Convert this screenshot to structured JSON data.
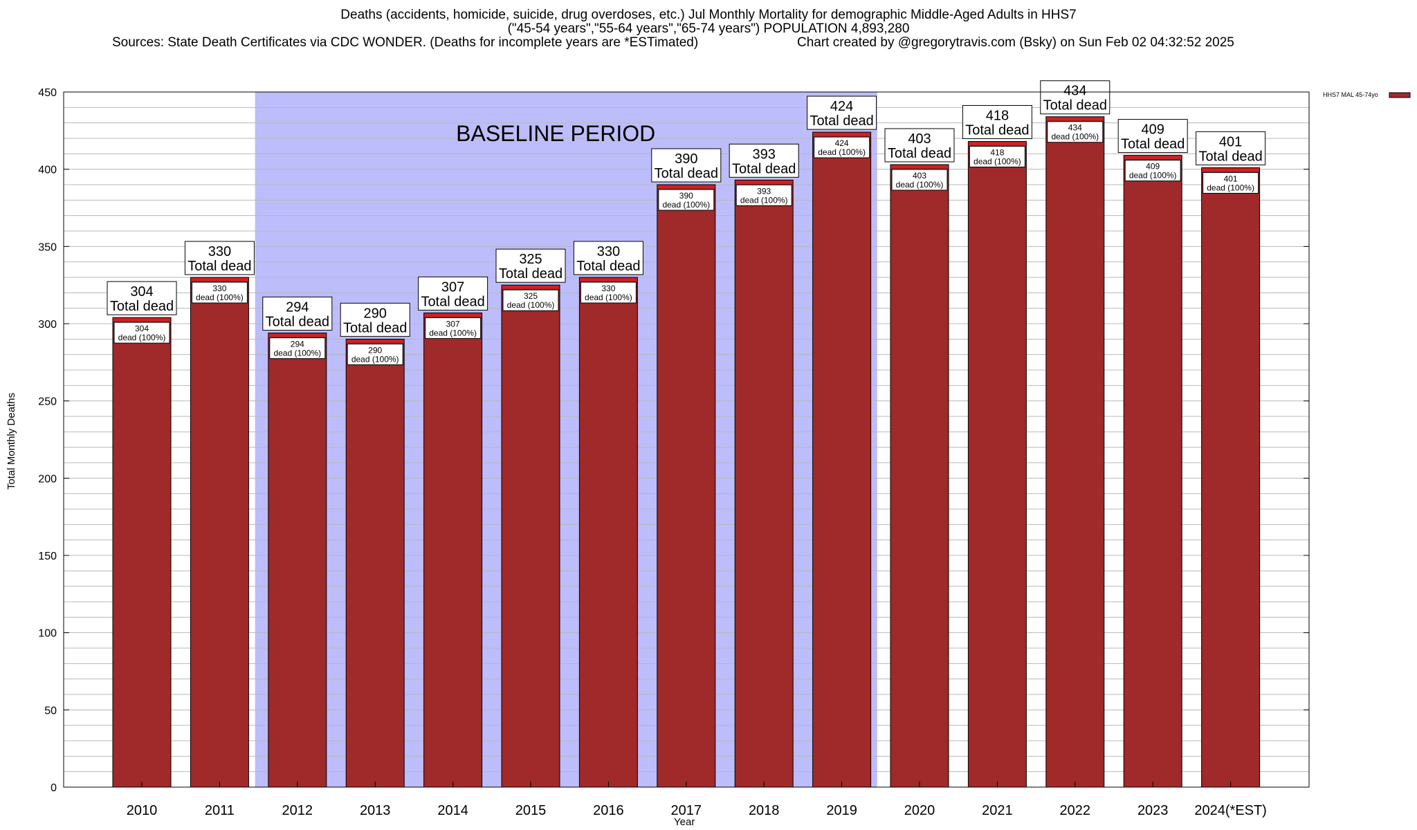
{
  "header": {
    "line1": "Deaths (accidents, homicide, suicide, drug overdoses, etc.) Jul Monthly Mortality for demographic Middle-Aged Adults in HHS7",
    "line2": "(\"45-54 years\",\"55-64 years\",\"65-74 years\") POPULATION 4,893,280",
    "line3_left": "Sources: State Death Certificates via CDC WONDER. (Deaths for incomplete years are *ESTimated)",
    "line3_right": "Chart created by @gregorytravis.com (Bsky) on Sun Feb 02 04:32:52 2025"
  },
  "chart_data": {
    "type": "bar",
    "categories": [
      "2010",
      "2011",
      "2012",
      "2013",
      "2014",
      "2015",
      "2016",
      "2017",
      "2018",
      "2019",
      "2020",
      "2021",
      "2022",
      "2023",
      "2024(*EST)"
    ],
    "series": [
      {
        "name": "HHS7 MAL 45-74yo",
        "values": [
          304,
          330,
          294,
          290,
          307,
          325,
          330,
          390,
          393,
          424,
          403,
          418,
          434,
          409,
          401
        ]
      }
    ],
    "xlabel": "Year",
    "ylabel": "Total Monthly Deaths",
    "ylim": [
      0,
      450
    ],
    "yticks": [
      0,
      50,
      100,
      150,
      200,
      250,
      300,
      350,
      400,
      450
    ],
    "minor_grid_step": 10,
    "grid": true,
    "legend_position": "top-right",
    "bar_color": "#a0292a",
    "bar_top_color": "#d42020",
    "bar_label_big_suffix": "Total dead",
    "bar_label_small_suffix": "dead (100%)",
    "baseline_region": {
      "label": "BASELINE PERIOD",
      "from": "2012",
      "to": "2019",
      "color": "#bdbdfc"
    }
  }
}
